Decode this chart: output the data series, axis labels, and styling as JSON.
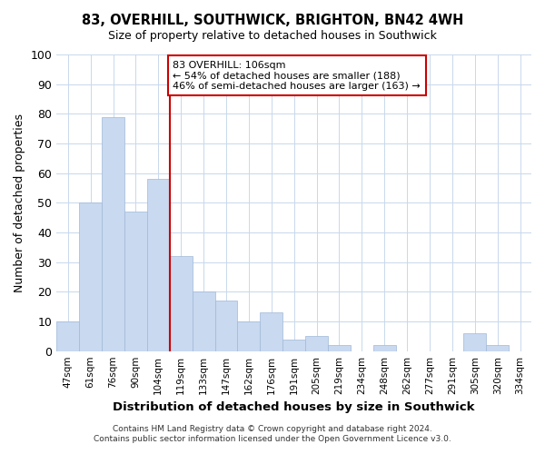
{
  "title": "83, OVERHILL, SOUTHWICK, BRIGHTON, BN42 4WH",
  "subtitle": "Size of property relative to detached houses in Southwick",
  "xlabel": "Distribution of detached houses by size in Southwick",
  "ylabel": "Number of detached properties",
  "bar_labels": [
    "47sqm",
    "61sqm",
    "76sqm",
    "90sqm",
    "104sqm",
    "119sqm",
    "133sqm",
    "147sqm",
    "162sqm",
    "176sqm",
    "191sqm",
    "205sqm",
    "219sqm",
    "234sqm",
    "248sqm",
    "262sqm",
    "277sqm",
    "291sqm",
    "305sqm",
    "320sqm",
    "334sqm"
  ],
  "bar_heights": [
    10,
    50,
    79,
    47,
    58,
    32,
    20,
    17,
    10,
    13,
    4,
    5,
    2,
    0,
    2,
    0,
    0,
    0,
    6,
    2,
    0
  ],
  "bar_color": "#c8d9f0",
  "bar_edge_color": "#a0b8d8",
  "vline_x_idx": 4,
  "vline_color": "#cc0000",
  "ylim": [
    0,
    100
  ],
  "annotation_text": "83 OVERHILL: 106sqm\n← 54% of detached houses are smaller (188)\n46% of semi-detached houses are larger (163) →",
  "annotation_box_color": "#ffffff",
  "annotation_box_edge": "#cc0000",
  "footer_line1": "Contains HM Land Registry data © Crown copyright and database right 2024.",
  "footer_line2": "Contains public sector information licensed under the Open Government Licence v3.0.",
  "background_color": "#ffffff",
  "grid_color": "#c8d8ec"
}
